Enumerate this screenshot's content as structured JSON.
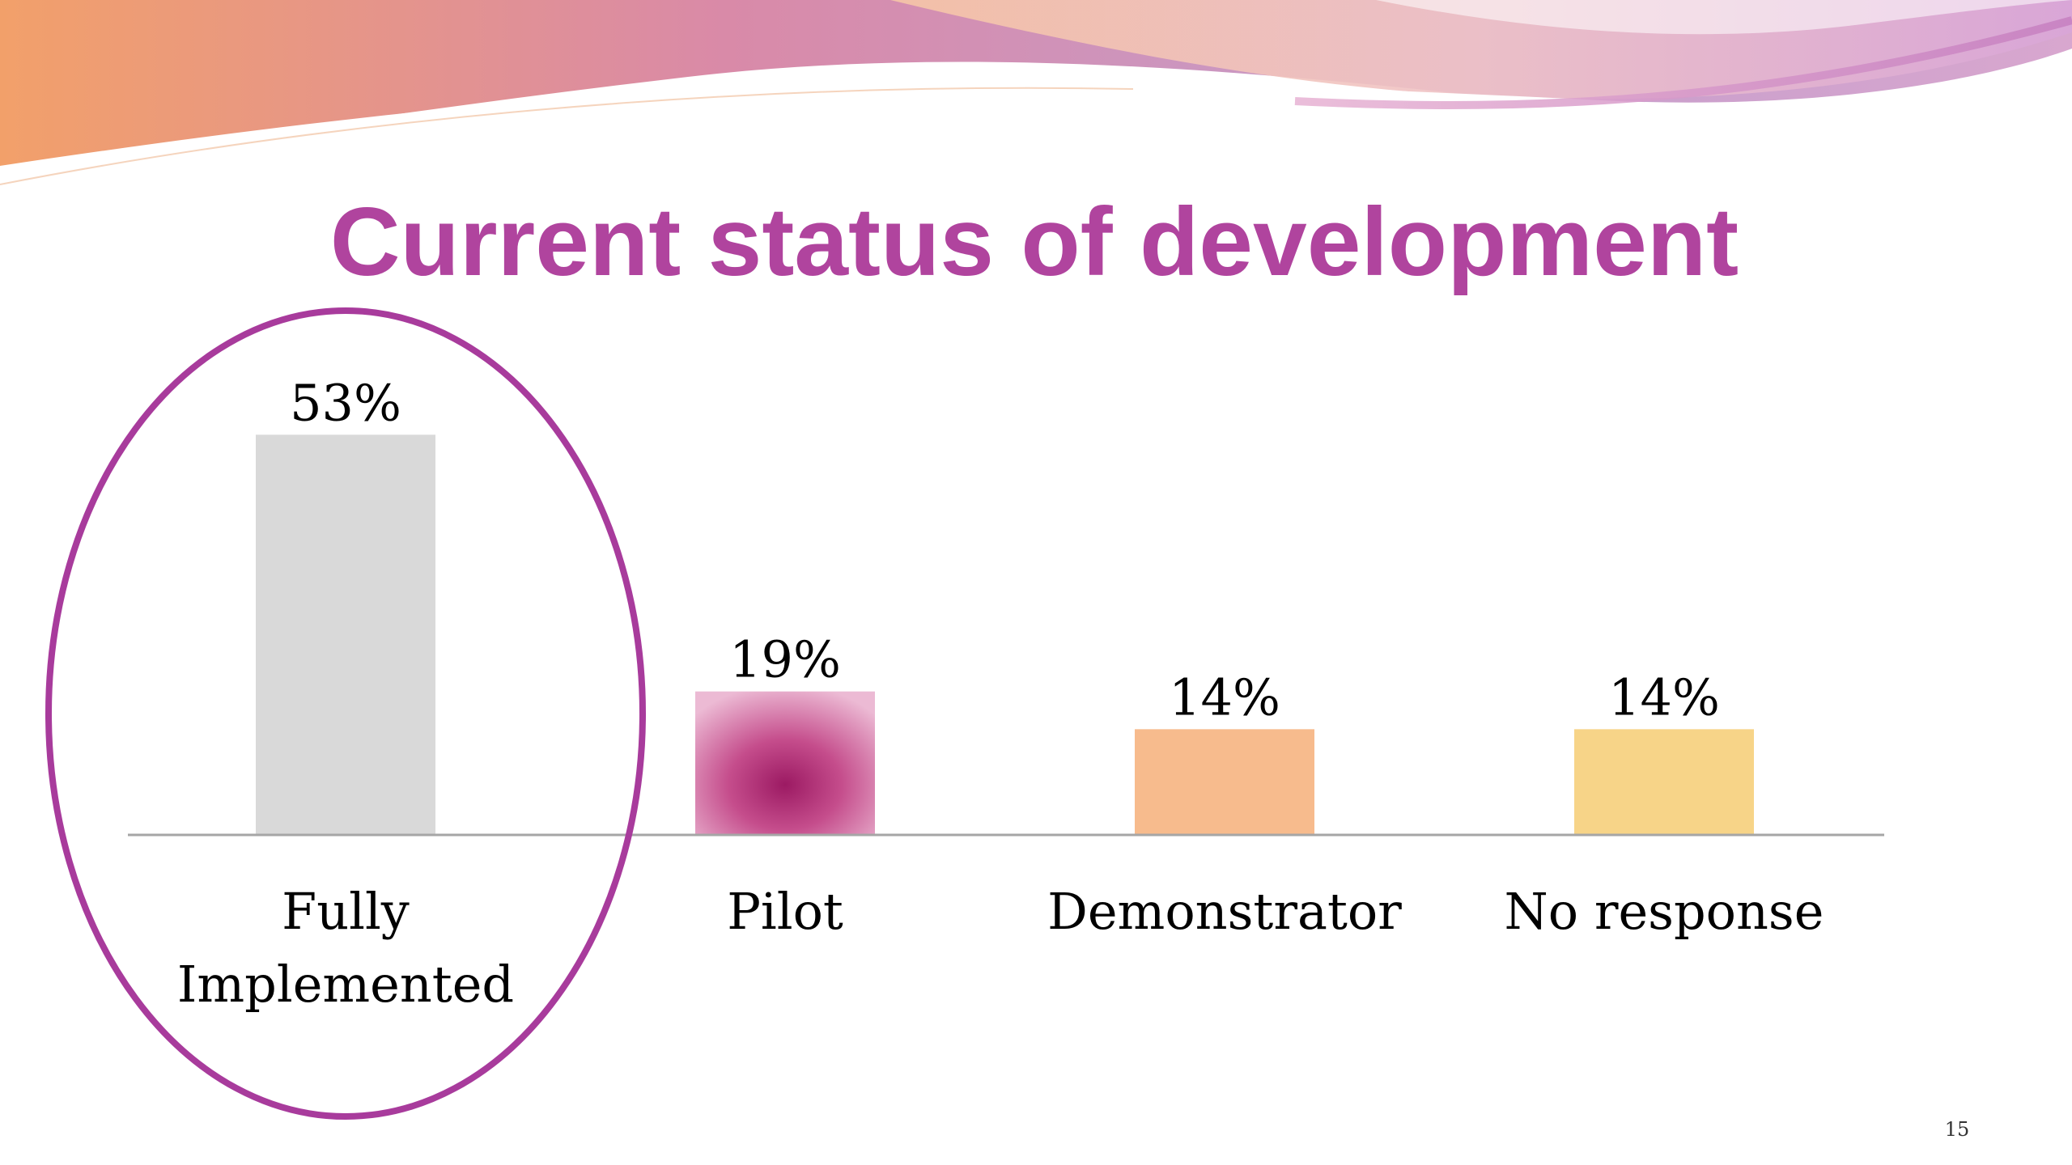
{
  "slide": {
    "title": "Current status of development",
    "page_number": "15"
  },
  "colors": {
    "title": "#b0449e",
    "highlight_ellipse": "#a83b9c",
    "axis": "#a6a6a6",
    "label_text": "#000000"
  },
  "chart_data": {
    "type": "bar",
    "title": "Current status of development",
    "xlabel": "",
    "ylabel": "",
    "ylim": [
      0,
      60
    ],
    "grid": false,
    "categories": [
      "Fully Implemented",
      "Pilot",
      "Demonstrator",
      "No response"
    ],
    "category_lines": [
      [
        "Fully",
        "Implemented"
      ],
      [
        "Pilot"
      ],
      [
        "Demonstrator"
      ],
      [
        "No response"
      ]
    ],
    "values": [
      53,
      19,
      14,
      14
    ],
    "value_labels": [
      "53%",
      "19%",
      "14%",
      "14%"
    ],
    "bar_colors": [
      "#d9d9d9",
      "gradient-magenta",
      "#f7bb8d",
      "#f7d488"
    ],
    "highlighted_category": "Fully Implemented"
  }
}
